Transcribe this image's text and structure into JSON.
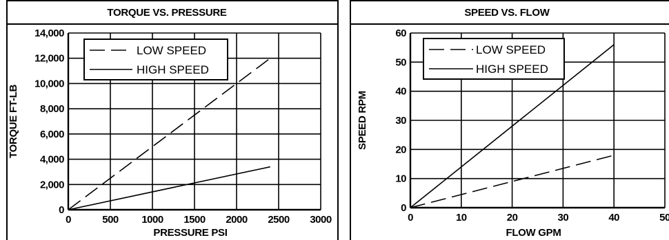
{
  "chart_data": [
    {
      "type": "line",
      "title": "TORQUE VS. PRESSURE",
      "xlabel": "PRESSURE PSI",
      "ylabel": "TORQUE FT-LB",
      "xlim": [
        0,
        3000
      ],
      "ylim": [
        0,
        14000
      ],
      "x_ticks": [
        0,
        500,
        1000,
        1500,
        2000,
        2500,
        3000
      ],
      "y_ticks": [
        0,
        2000,
        4000,
        6000,
        8000,
        10000,
        12000,
        14000
      ],
      "x_tick_labels": [
        "0",
        "500",
        "1000",
        "1500",
        "2000",
        "2500",
        "3000"
      ],
      "y_tick_labels": [
        "0",
        "2,000",
        "4,000",
        "6,000",
        "8,000",
        "10,000",
        "12,000",
        "14,000"
      ],
      "grid": true,
      "legend_position": "top-left",
      "series": [
        {
          "name": "LOW SPEED",
          "style": "dashed",
          "x": [
            0,
            2400
          ],
          "y": [
            0,
            12000
          ]
        },
        {
          "name": "HIGH SPEED",
          "style": "solid",
          "x": [
            0,
            2400
          ],
          "y": [
            0,
            3400
          ]
        }
      ]
    },
    {
      "type": "line",
      "title": "SPEED VS. FLOW",
      "xlabel": "FLOW GPM",
      "ylabel": "SPEED RPM",
      "xlim": [
        0,
        50
      ],
      "ylim": [
        0,
        60
      ],
      "x_ticks": [
        0,
        10,
        20,
        30,
        40,
        50
      ],
      "y_ticks": [
        0,
        10,
        20,
        30,
        40,
        50,
        60
      ],
      "x_tick_labels": [
        "0",
        "10",
        "20",
        "30",
        "40",
        "50"
      ],
      "y_tick_labels": [
        "0",
        "10",
        "20",
        "30",
        "40",
        "50",
        "60"
      ],
      "grid": true,
      "legend_position": "top-left",
      "series": [
        {
          "name": "LOW SPEED",
          "style": "dashed",
          "x": [
            0,
            40
          ],
          "y": [
            0,
            18
          ]
        },
        {
          "name": "HIGH SPEED",
          "style": "solid",
          "x": [
            0,
            40
          ],
          "y": [
            0,
            56
          ]
        }
      ]
    }
  ]
}
